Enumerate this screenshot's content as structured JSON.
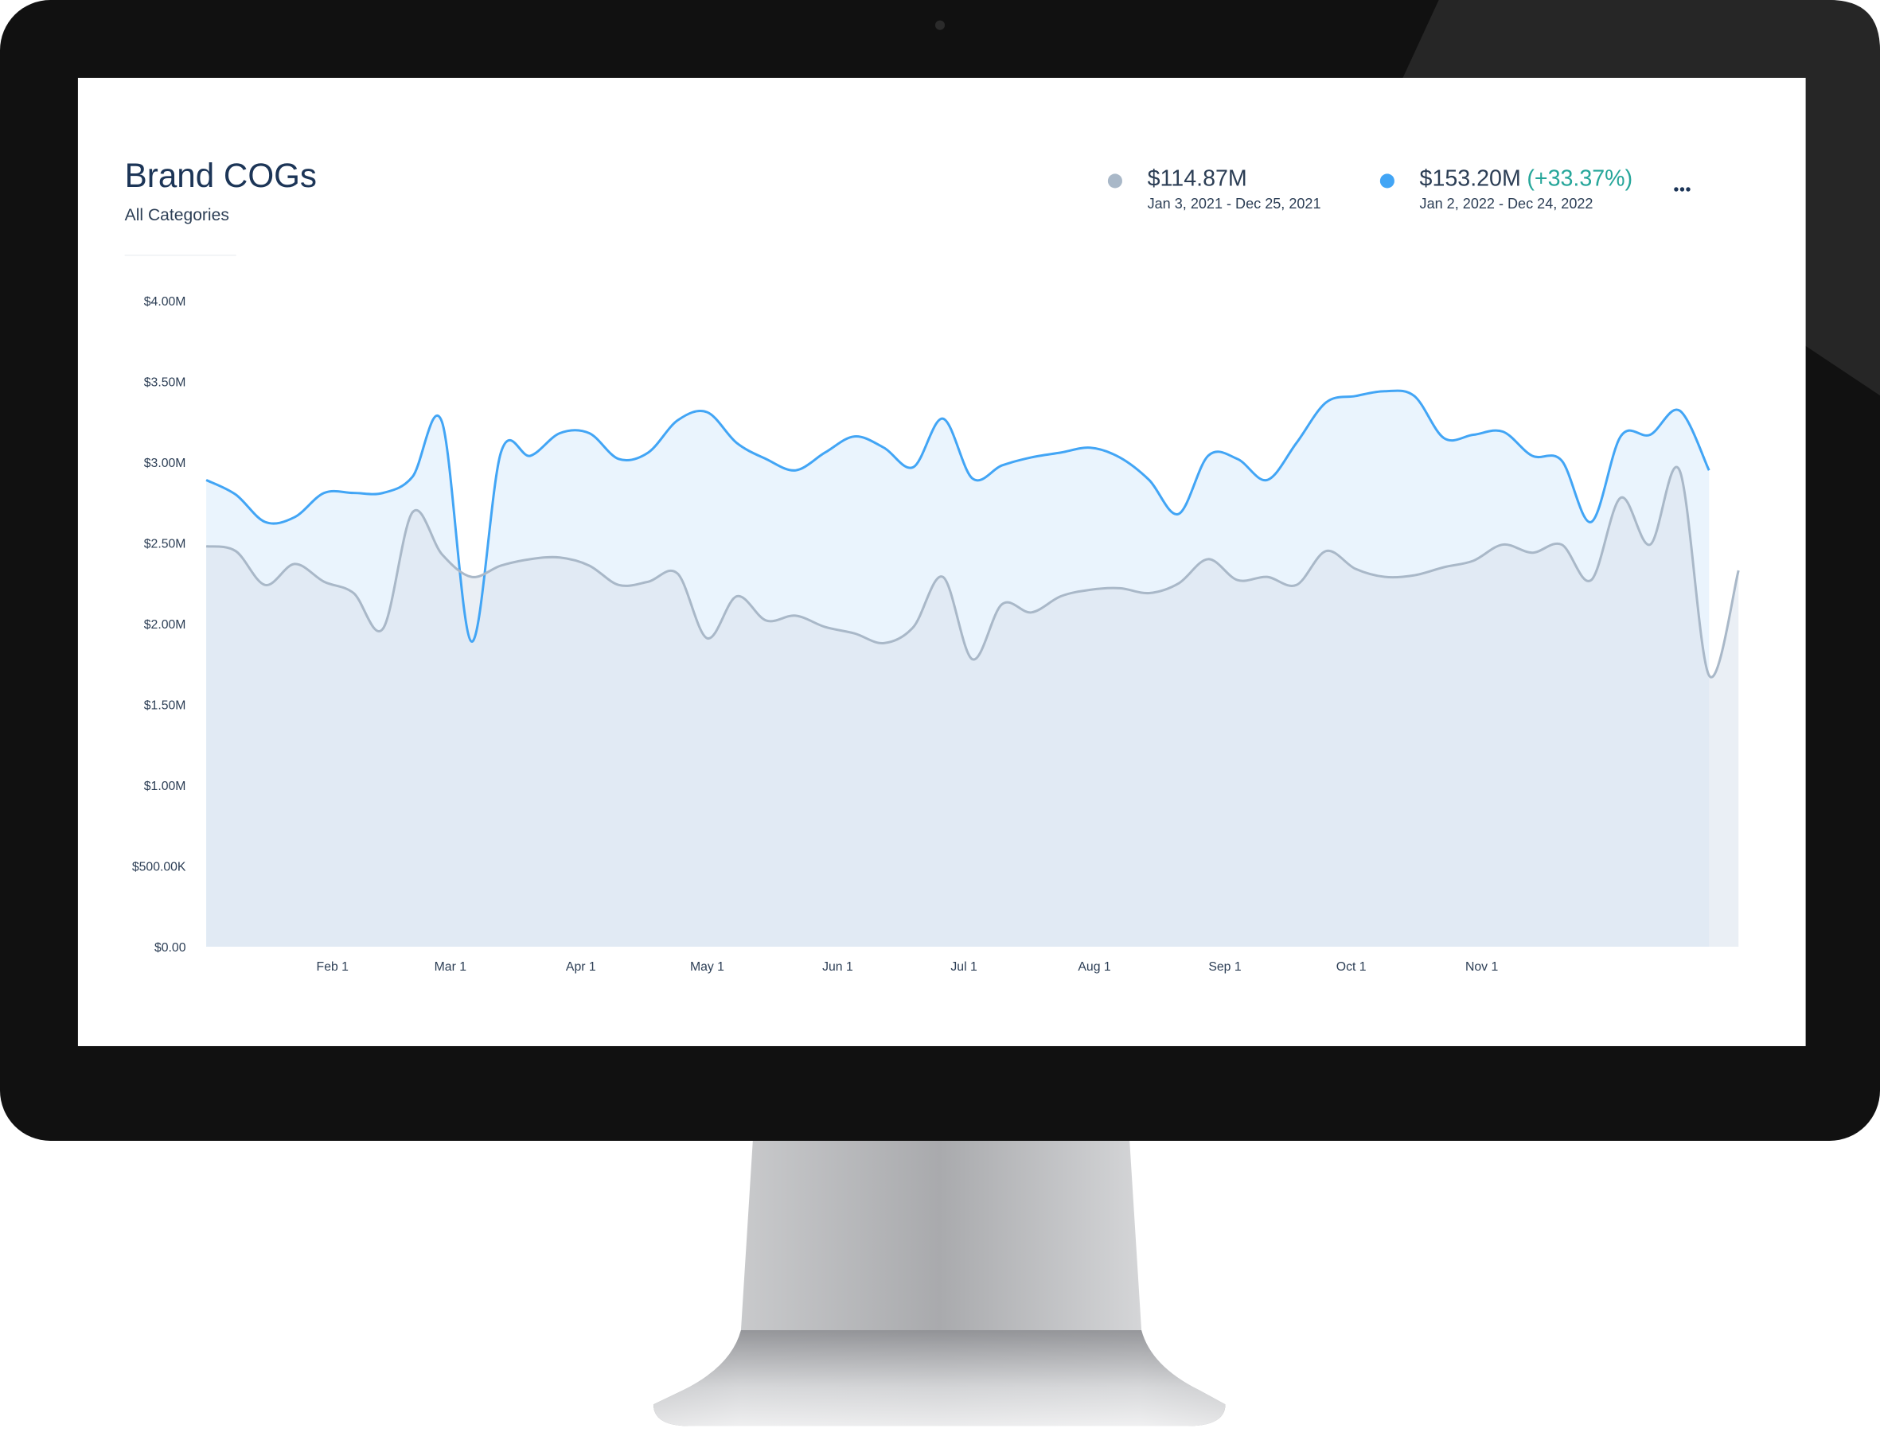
{
  "chart_data": {
    "type": "area",
    "title": "Brand COGs",
    "subtitle": "All Categories",
    "x": [
      0,
      7,
      14,
      21,
      28,
      35,
      42,
      49,
      56,
      63,
      70,
      77,
      84,
      91,
      98,
      105,
      112,
      119,
      126,
      133,
      140,
      147,
      154,
      161,
      168,
      175,
      182,
      189,
      196,
      203,
      210,
      217,
      224,
      231,
      238,
      245,
      252,
      259,
      266,
      273,
      280,
      287,
      294,
      301,
      308,
      315,
      322,
      329,
      336,
      343,
      350,
      357,
      364
    ],
    "xlim": [
      0,
      364
    ],
    "xticks": [
      {
        "value": 30,
        "label": "Feb 1"
      },
      {
        "value": 58,
        "label": "Mar 1"
      },
      {
        "value": 89,
        "label": "Apr 1"
      },
      {
        "value": 119,
        "label": "May 1"
      },
      {
        "value": 150,
        "label": "Jun 1"
      },
      {
        "value": 180,
        "label": "Jul 1"
      },
      {
        "value": 211,
        "label": "Aug 1"
      },
      {
        "value": 242,
        "label": "Sep 1"
      },
      {
        "value": 272,
        "label": "Oct 1"
      },
      {
        "value": 303,
        "label": "Nov 1"
      }
    ],
    "ylim": [
      0,
      4
    ],
    "yticks": [
      {
        "value": 0,
        "label": "$0.00"
      },
      {
        "value": 0.5,
        "label": "$500.00K"
      },
      {
        "value": 1,
        "label": "$1.00M"
      },
      {
        "value": 1.5,
        "label": "$1.50M"
      },
      {
        "value": 2,
        "label": "$2.00M"
      },
      {
        "value": 2.5,
        "label": "$2.50M"
      },
      {
        "value": 3,
        "label": "$3.00M"
      },
      {
        "value": 3.5,
        "label": "$3.50M"
      },
      {
        "value": 4,
        "label": "$4.00M"
      }
    ],
    "series": [
      {
        "name": "Jan 2, 2022 - Dec 24, 2022",
        "total": "$153.20M",
        "change": "(+33.37%)",
        "change_color": "#26a69a",
        "color": "#42a5f5",
        "fill": "#eaf4fd",
        "fill_opacity": 1,
        "values": [
          2.89,
          2.8,
          2.63,
          2.66,
          2.81,
          2.81,
          2.81,
          2.91,
          3.25,
          1.89,
          3.06,
          3.04,
          3.18,
          3.18,
          3.02,
          3.06,
          3.26,
          3.31,
          3.12,
          3.02,
          2.95,
          3.06,
          3.16,
          3.09,
          2.97,
          3.27,
          2.9,
          2.98,
          3.03,
          3.06,
          3.09,
          3.03,
          2.89,
          2.68,
          3.04,
          3.02,
          2.89,
          3.12,
          3.37,
          3.41,
          3.44,
          3.41,
          3.15,
          3.17,
          3.19,
          3.04,
          3.01,
          2.63,
          3.16,
          3.17,
          3.32,
          2.95,
          null
        ]
      },
      {
        "name": "Jan 3, 2021 - Dec 25, 2021",
        "total": "$114.87M",
        "color": "#a9b8c8",
        "fill": "#d9e2ec",
        "fill_opacity": 0.55,
        "values": [
          2.48,
          2.45,
          2.24,
          2.37,
          2.26,
          2.19,
          1.97,
          2.69,
          2.43,
          2.29,
          2.36,
          2.4,
          2.41,
          2.36,
          2.24,
          2.26,
          2.31,
          1.91,
          2.17,
          2.02,
          2.05,
          1.98,
          1.94,
          1.88,
          1.98,
          2.29,
          1.78,
          2.12,
          2.07,
          2.17,
          2.21,
          2.22,
          2.19,
          2.25,
          2.4,
          2.27,
          2.29,
          2.24,
          2.45,
          2.34,
          2.29,
          2.3,
          2.35,
          2.39,
          2.49,
          2.44,
          2.49,
          2.27,
          2.78,
          2.49,
          2.95,
          1.68,
          2.33
        ]
      }
    ]
  }
}
